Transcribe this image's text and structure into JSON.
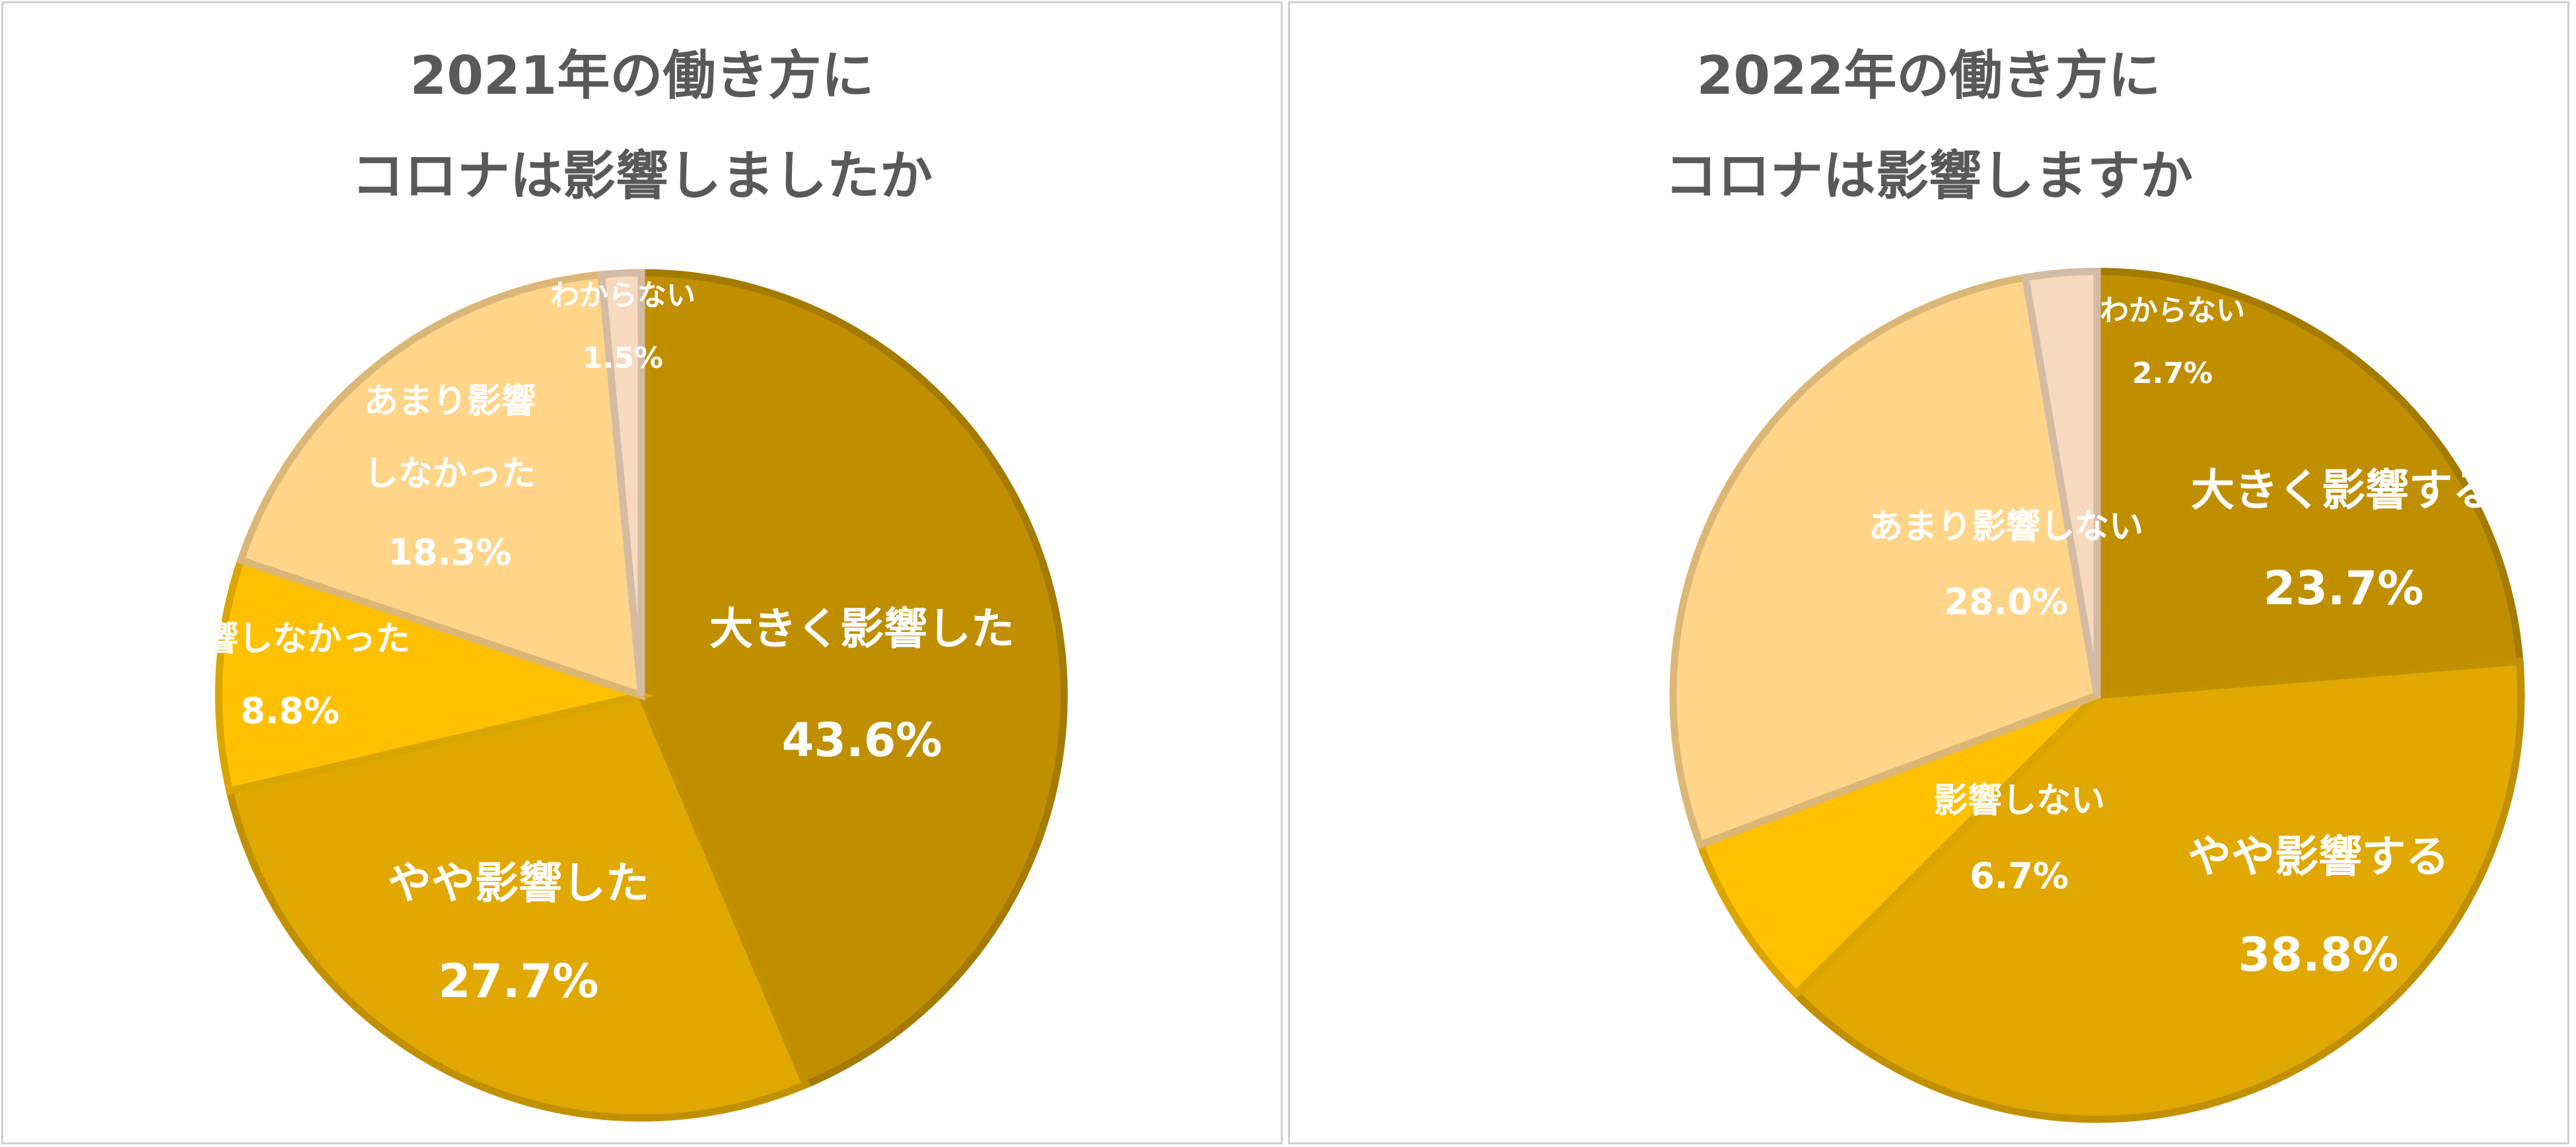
{
  "chart_data": [
    {
      "type": "pie",
      "title": [
        "2021年の働き方に",
        "コロナは影響しましたか"
      ],
      "slices": [
        {
          "label": [
            "大きく影響した"
          ],
          "value": 43.6,
          "value_label": "43.6%",
          "color": "#BF8F00"
        },
        {
          "label": [
            "やや影響した"
          ],
          "value": 27.7,
          "value_label": "27.7%",
          "color": "#E0A800"
        },
        {
          "label": [
            "影響しなかった"
          ],
          "value": 8.8,
          "value_label": "8.8%",
          "color": "#FFC000"
        },
        {
          "label": [
            "あまり影響",
            "しなかった"
          ],
          "value": 18.3,
          "value_label": "18.3%",
          "color": "#FFD58A"
        },
        {
          "label": [
            "わからない"
          ],
          "value": 1.5,
          "value_label": "1.5%",
          "color": "#F6D9BE"
        }
      ]
    },
    {
      "type": "pie",
      "title": [
        "2022年の働き方に",
        "コロナは影響しますか"
      ],
      "slices": [
        {
          "label": [
            "大きく影響する"
          ],
          "value": 23.7,
          "value_label": "23.7%",
          "color": "#BF8F00"
        },
        {
          "label": [
            "やや影響する"
          ],
          "value": 38.8,
          "value_label": "38.8%",
          "color": "#E0A800"
        },
        {
          "label": [
            "影響しない"
          ],
          "value": 6.7,
          "value_label": "6.7%",
          "color": "#FFC000"
        },
        {
          "label": [
            "あまり影響しない"
          ],
          "value": 28.0,
          "value_label": "28.0%",
          "color": "#FFD58A"
        },
        {
          "label": [
            "わからない"
          ],
          "value": 2.7,
          "value_label": "2.7%",
          "color": "#F6D9BE"
        }
      ]
    }
  ]
}
